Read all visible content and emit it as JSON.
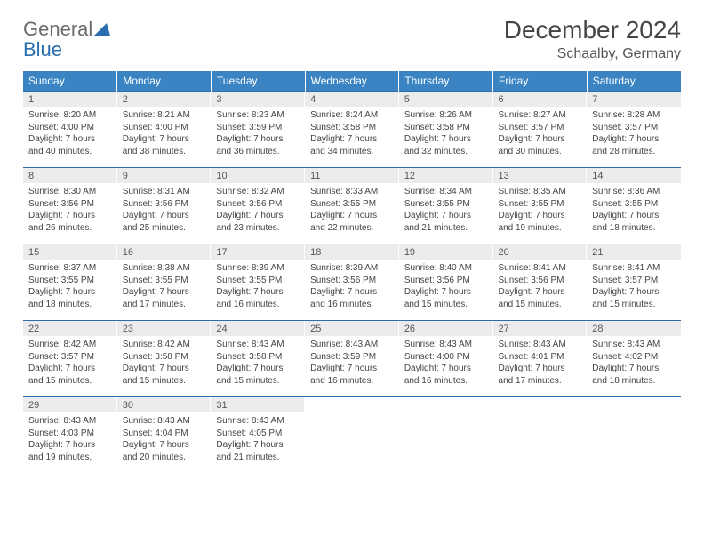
{
  "logo": {
    "text_left": "General",
    "text_right": "Blue"
  },
  "title": "December 2024",
  "location": "Schaalby, Germany",
  "colors": {
    "header_bg": "#3b84c4",
    "header_text": "#ffffff",
    "daynum_bg": "#ececec",
    "border": "#2a6db0",
    "logo_gray": "#6b6b6b",
    "logo_blue": "#2a6db0"
  },
  "weekdays": [
    "Sunday",
    "Monday",
    "Tuesday",
    "Wednesday",
    "Thursday",
    "Friday",
    "Saturday"
  ],
  "days": [
    {
      "n": "1",
      "sunrise": "Sunrise: 8:20 AM",
      "sunset": "Sunset: 4:00 PM",
      "day1": "Daylight: 7 hours",
      "day2": "and 40 minutes."
    },
    {
      "n": "2",
      "sunrise": "Sunrise: 8:21 AM",
      "sunset": "Sunset: 4:00 PM",
      "day1": "Daylight: 7 hours",
      "day2": "and 38 minutes."
    },
    {
      "n": "3",
      "sunrise": "Sunrise: 8:23 AM",
      "sunset": "Sunset: 3:59 PM",
      "day1": "Daylight: 7 hours",
      "day2": "and 36 minutes."
    },
    {
      "n": "4",
      "sunrise": "Sunrise: 8:24 AM",
      "sunset": "Sunset: 3:58 PM",
      "day1": "Daylight: 7 hours",
      "day2": "and 34 minutes."
    },
    {
      "n": "5",
      "sunrise": "Sunrise: 8:26 AM",
      "sunset": "Sunset: 3:58 PM",
      "day1": "Daylight: 7 hours",
      "day2": "and 32 minutes."
    },
    {
      "n": "6",
      "sunrise": "Sunrise: 8:27 AM",
      "sunset": "Sunset: 3:57 PM",
      "day1": "Daylight: 7 hours",
      "day2": "and 30 minutes."
    },
    {
      "n": "7",
      "sunrise": "Sunrise: 8:28 AM",
      "sunset": "Sunset: 3:57 PM",
      "day1": "Daylight: 7 hours",
      "day2": "and 28 minutes."
    },
    {
      "n": "8",
      "sunrise": "Sunrise: 8:30 AM",
      "sunset": "Sunset: 3:56 PM",
      "day1": "Daylight: 7 hours",
      "day2": "and 26 minutes."
    },
    {
      "n": "9",
      "sunrise": "Sunrise: 8:31 AM",
      "sunset": "Sunset: 3:56 PM",
      "day1": "Daylight: 7 hours",
      "day2": "and 25 minutes."
    },
    {
      "n": "10",
      "sunrise": "Sunrise: 8:32 AM",
      "sunset": "Sunset: 3:56 PM",
      "day1": "Daylight: 7 hours",
      "day2": "and 23 minutes."
    },
    {
      "n": "11",
      "sunrise": "Sunrise: 8:33 AM",
      "sunset": "Sunset: 3:55 PM",
      "day1": "Daylight: 7 hours",
      "day2": "and 22 minutes."
    },
    {
      "n": "12",
      "sunrise": "Sunrise: 8:34 AM",
      "sunset": "Sunset: 3:55 PM",
      "day1": "Daylight: 7 hours",
      "day2": "and 21 minutes."
    },
    {
      "n": "13",
      "sunrise": "Sunrise: 8:35 AM",
      "sunset": "Sunset: 3:55 PM",
      "day1": "Daylight: 7 hours",
      "day2": "and 19 minutes."
    },
    {
      "n": "14",
      "sunrise": "Sunrise: 8:36 AM",
      "sunset": "Sunset: 3:55 PM",
      "day1": "Daylight: 7 hours",
      "day2": "and 18 minutes."
    },
    {
      "n": "15",
      "sunrise": "Sunrise: 8:37 AM",
      "sunset": "Sunset: 3:55 PM",
      "day1": "Daylight: 7 hours",
      "day2": "and 18 minutes."
    },
    {
      "n": "16",
      "sunrise": "Sunrise: 8:38 AM",
      "sunset": "Sunset: 3:55 PM",
      "day1": "Daylight: 7 hours",
      "day2": "and 17 minutes."
    },
    {
      "n": "17",
      "sunrise": "Sunrise: 8:39 AM",
      "sunset": "Sunset: 3:55 PM",
      "day1": "Daylight: 7 hours",
      "day2": "and 16 minutes."
    },
    {
      "n": "18",
      "sunrise": "Sunrise: 8:39 AM",
      "sunset": "Sunset: 3:56 PM",
      "day1": "Daylight: 7 hours",
      "day2": "and 16 minutes."
    },
    {
      "n": "19",
      "sunrise": "Sunrise: 8:40 AM",
      "sunset": "Sunset: 3:56 PM",
      "day1": "Daylight: 7 hours",
      "day2": "and 15 minutes."
    },
    {
      "n": "20",
      "sunrise": "Sunrise: 8:41 AM",
      "sunset": "Sunset: 3:56 PM",
      "day1": "Daylight: 7 hours",
      "day2": "and 15 minutes."
    },
    {
      "n": "21",
      "sunrise": "Sunrise: 8:41 AM",
      "sunset": "Sunset: 3:57 PM",
      "day1": "Daylight: 7 hours",
      "day2": "and 15 minutes."
    },
    {
      "n": "22",
      "sunrise": "Sunrise: 8:42 AM",
      "sunset": "Sunset: 3:57 PM",
      "day1": "Daylight: 7 hours",
      "day2": "and 15 minutes."
    },
    {
      "n": "23",
      "sunrise": "Sunrise: 8:42 AM",
      "sunset": "Sunset: 3:58 PM",
      "day1": "Daylight: 7 hours",
      "day2": "and 15 minutes."
    },
    {
      "n": "24",
      "sunrise": "Sunrise: 8:43 AM",
      "sunset": "Sunset: 3:58 PM",
      "day1": "Daylight: 7 hours",
      "day2": "and 15 minutes."
    },
    {
      "n": "25",
      "sunrise": "Sunrise: 8:43 AM",
      "sunset": "Sunset: 3:59 PM",
      "day1": "Daylight: 7 hours",
      "day2": "and 16 minutes."
    },
    {
      "n": "26",
      "sunrise": "Sunrise: 8:43 AM",
      "sunset": "Sunset: 4:00 PM",
      "day1": "Daylight: 7 hours",
      "day2": "and 16 minutes."
    },
    {
      "n": "27",
      "sunrise": "Sunrise: 8:43 AM",
      "sunset": "Sunset: 4:01 PM",
      "day1": "Daylight: 7 hours",
      "day2": "and 17 minutes."
    },
    {
      "n": "28",
      "sunrise": "Sunrise: 8:43 AM",
      "sunset": "Sunset: 4:02 PM",
      "day1": "Daylight: 7 hours",
      "day2": "and 18 minutes."
    },
    {
      "n": "29",
      "sunrise": "Sunrise: 8:43 AM",
      "sunset": "Sunset: 4:03 PM",
      "day1": "Daylight: 7 hours",
      "day2": "and 19 minutes."
    },
    {
      "n": "30",
      "sunrise": "Sunrise: 8:43 AM",
      "sunset": "Sunset: 4:04 PM",
      "day1": "Daylight: 7 hours",
      "day2": "and 20 minutes."
    },
    {
      "n": "31",
      "sunrise": "Sunrise: 8:43 AM",
      "sunset": "Sunset: 4:05 PM",
      "day1": "Daylight: 7 hours",
      "day2": "and 21 minutes."
    }
  ]
}
